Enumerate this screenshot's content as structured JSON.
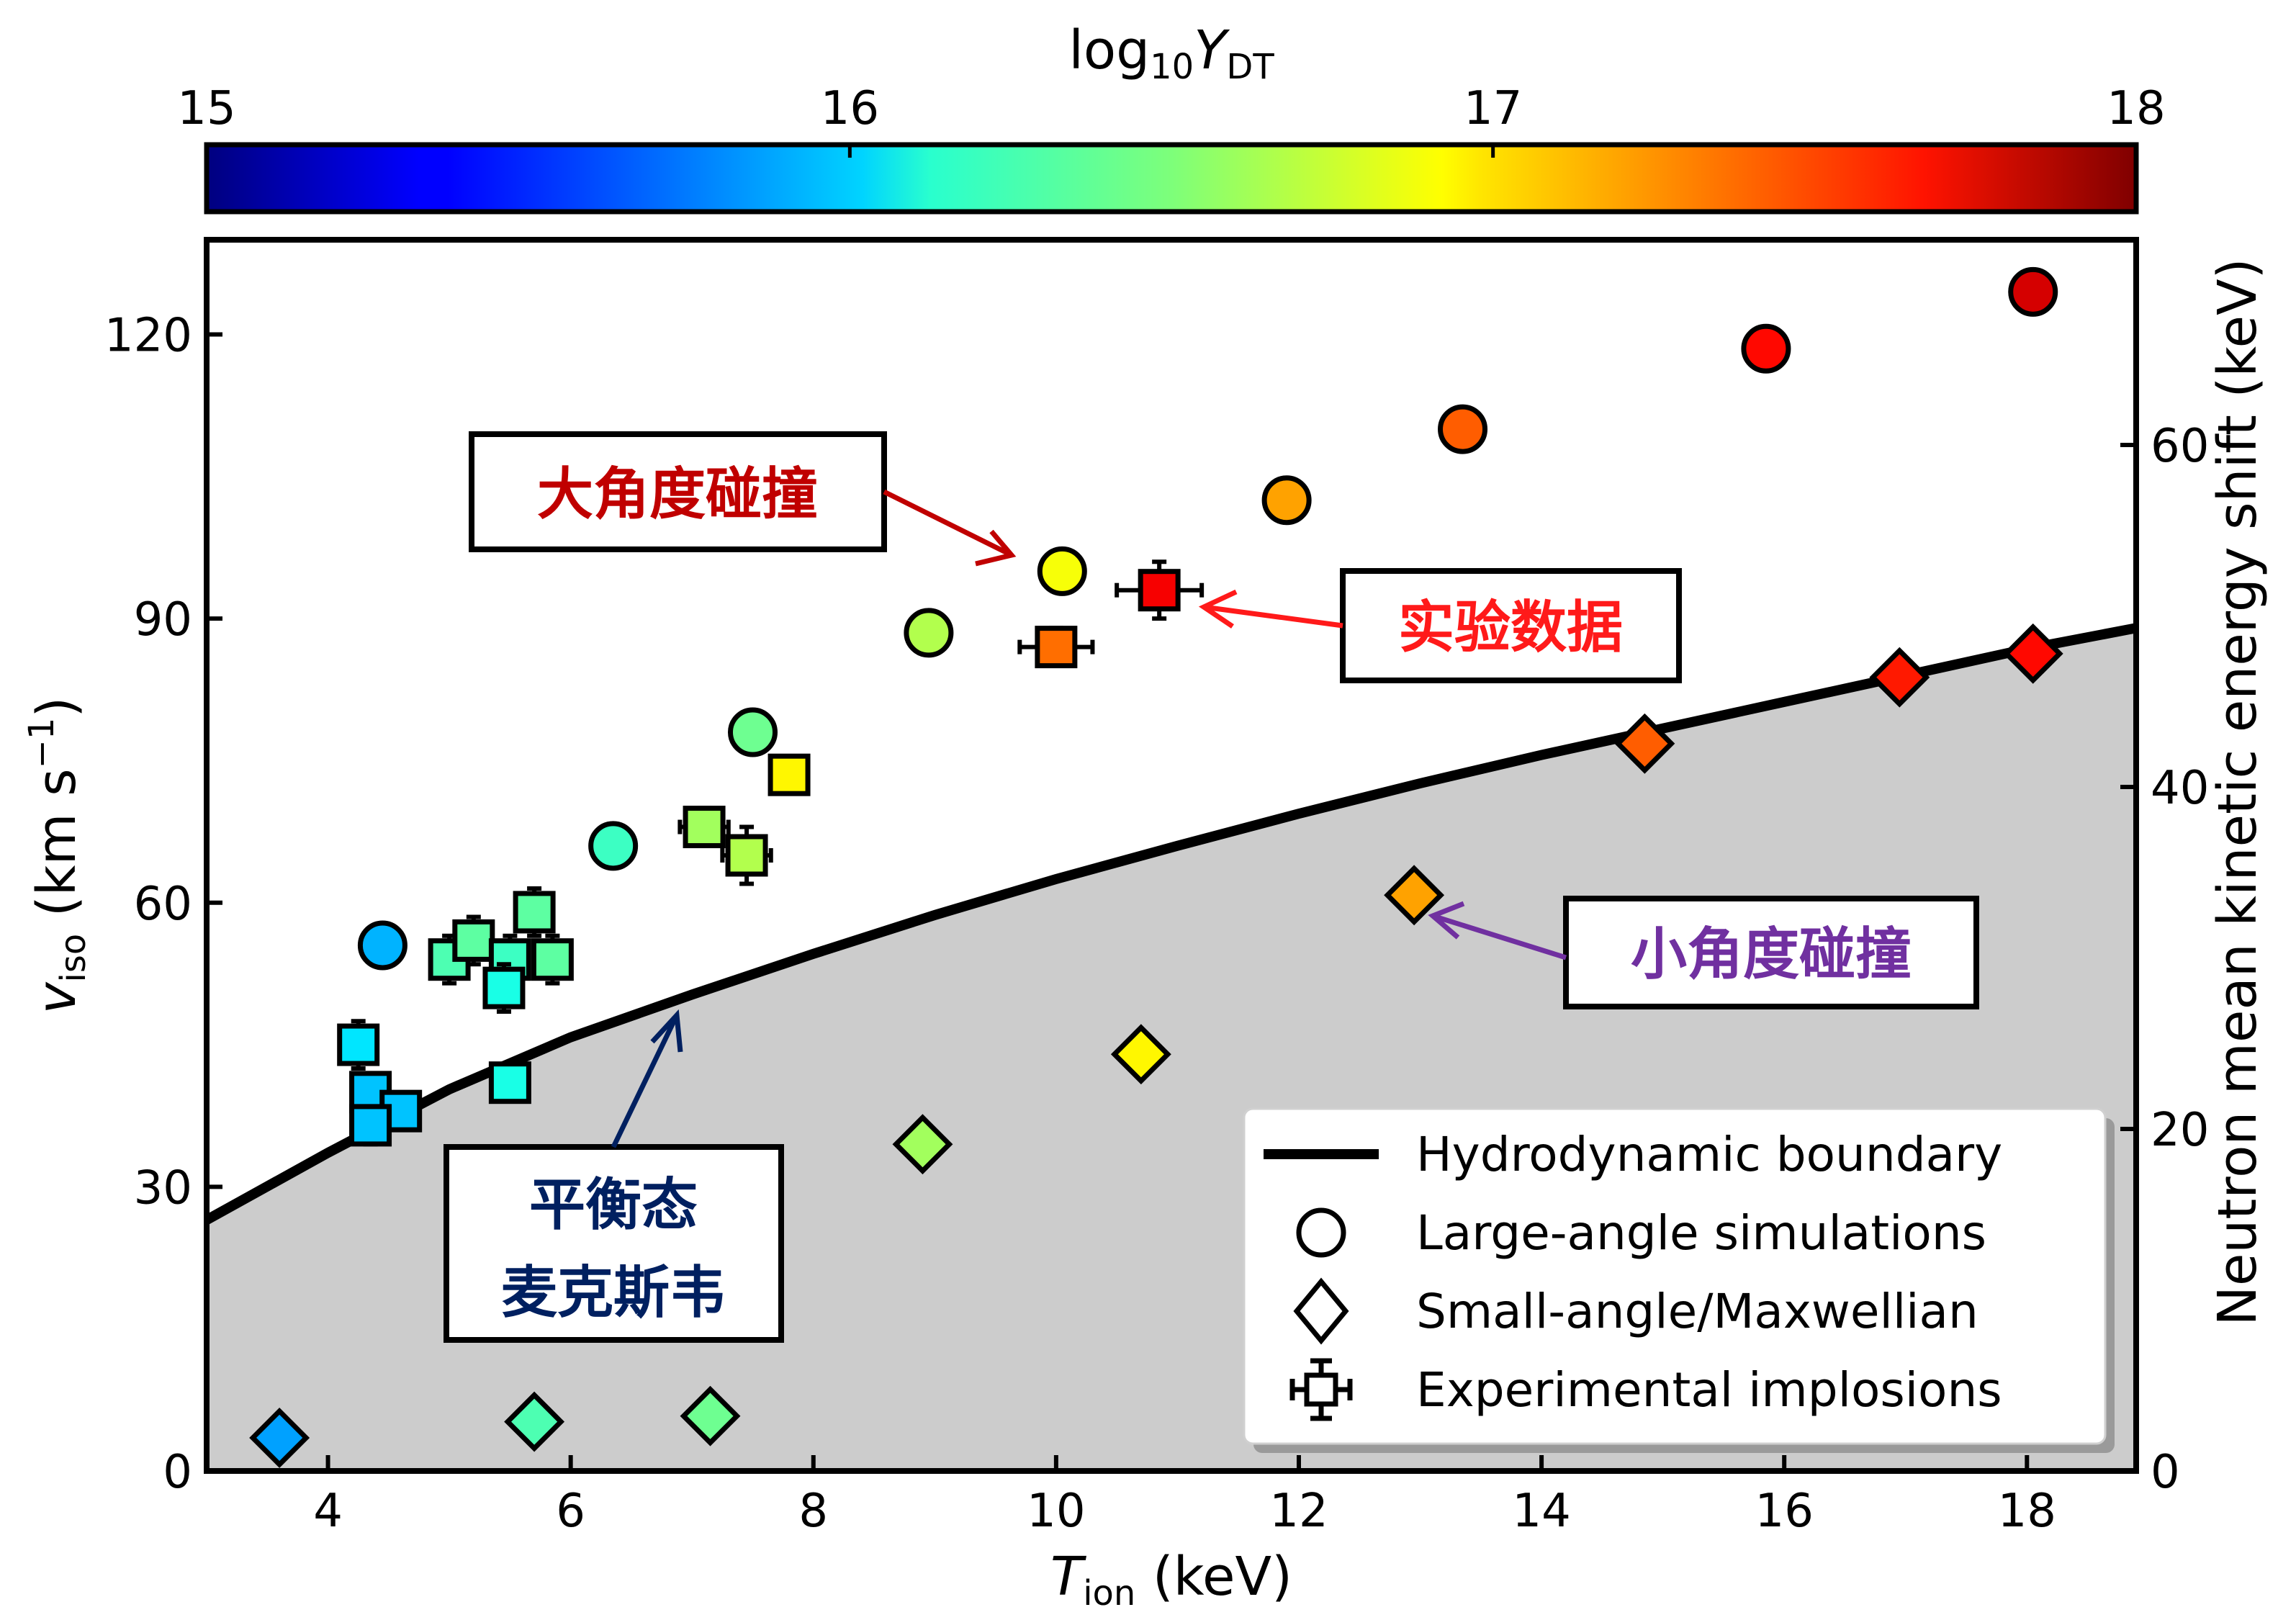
{
  "chart_data": {
    "type": "scatter",
    "xlabel": "T_ion (keV)",
    "ylabel": "v_iso (km s⁻¹)",
    "y2label": "Neutron mean kinetic energy shift (keV)",
    "xlim": [
      3,
      18.9
    ],
    "ylim": [
      0,
      130
    ],
    "y2lim": [
      0,
      72
    ],
    "xticks": [
      4,
      6,
      8,
      10,
      12,
      14,
      16,
      18
    ],
    "yticks": [
      0,
      30,
      60,
      90,
      120
    ],
    "y2ticks": [
      0,
      20,
      40,
      60
    ],
    "grid": false,
    "colorbar": {
      "label": "log10Y_DT",
      "range": [
        15,
        18
      ],
      "ticks": [
        15,
        16,
        17,
        18
      ],
      "colormap": "jet"
    },
    "hydrodynamic_boundary": {
      "name": "Hydrodynamic boundary",
      "x": [
        3,
        4,
        5,
        6,
        7,
        8,
        9,
        10,
        11,
        12,
        13,
        14,
        15,
        16,
        17,
        18,
        18.9
      ],
      "y": [
        26.5,
        33.6,
        40.3,
        45.8,
        50.3,
        54.6,
        58.7,
        62.5,
        66.0,
        69.4,
        72.6,
        75.6,
        78.4,
        81.2,
        84.0,
        86.8,
        89.0
      ]
    },
    "series": [
      {
        "name": "Large-angle simulations",
        "marker": "circle",
        "points": [
          {
            "x": 4.45,
            "y": 55.5,
            "logY": 15.9
          },
          {
            "x": 6.35,
            "y": 66.0,
            "logY": 16.3
          },
          {
            "x": 7.5,
            "y": 78.0,
            "logY": 16.45
          },
          {
            "x": 8.95,
            "y": 88.5,
            "logY": 16.65
          },
          {
            "x": 10.05,
            "y": 95.0,
            "logY": 16.85
          },
          {
            "x": 11.9,
            "y": 102.5,
            "logY": 17.15
          },
          {
            "x": 13.35,
            "y": 110.0,
            "logY": 17.35
          },
          {
            "x": 15.85,
            "y": 118.5,
            "logY": 17.6
          },
          {
            "x": 18.05,
            "y": 124.5,
            "logY": 17.75
          }
        ]
      },
      {
        "name": "Small-angle/Maxwellian",
        "marker": "diamond",
        "points": [
          {
            "x": 3.6,
            "y": 3.5,
            "logY": 15.85
          },
          {
            "x": 5.7,
            "y": 5.2,
            "logY": 16.35
          },
          {
            "x": 7.15,
            "y": 5.8,
            "logY": 16.45
          },
          {
            "x": 8.9,
            "y": 34.5,
            "logY": 16.6
          },
          {
            "x": 10.7,
            "y": 44.0,
            "logY": 16.9
          },
          {
            "x": 12.95,
            "y": 60.8,
            "logY": 17.15
          },
          {
            "x": 14.85,
            "y": 76.8,
            "logY": 17.35
          },
          {
            "x": 16.95,
            "y": 83.8,
            "logY": 17.55
          },
          {
            "x": 18.05,
            "y": 86.3,
            "logY": 17.6
          }
        ]
      },
      {
        "name": "Experimental implosions",
        "marker": "square",
        "points": [
          {
            "x": 4.25,
            "y": 45.0,
            "xerr": 0.1,
            "yerr": 2.5,
            "logY": 16.05
          },
          {
            "x": 4.35,
            "y": 40.0,
            "xerr": 0.1,
            "yerr": 2.0,
            "logY": 15.95
          },
          {
            "x": 4.6,
            "y": 38.0,
            "xerr": 0.1,
            "yerr": 1.5,
            "logY": 15.95
          },
          {
            "x": 4.35,
            "y": 36.5,
            "xerr": 0.1,
            "yerr": 2.0,
            "logY": 15.95
          },
          {
            "x": 5.0,
            "y": 54.0,
            "xerr": 0.15,
            "yerr": 2.5,
            "logY": 16.35
          },
          {
            "x": 5.2,
            "y": 56.0,
            "xerr": 0.15,
            "yerr": 2.5,
            "logY": 16.4
          },
          {
            "x": 5.5,
            "y": 54.0,
            "xerr": 0.15,
            "yerr": 2.5,
            "logY": 16.3
          },
          {
            "x": 5.45,
            "y": 51.0,
            "xerr": 0.1,
            "yerr": 2.5,
            "logY": 16.2
          },
          {
            "x": 5.7,
            "y": 59.0,
            "xerr": 0.15,
            "yerr": 2.5,
            "logY": 16.4
          },
          {
            "x": 5.85,
            "y": 54.0,
            "xerr": 0.15,
            "yerr": 2.5,
            "logY": 16.4
          },
          {
            "x": 5.5,
            "y": 41.0,
            "xerr": 0.1,
            "yerr": 1.5,
            "logY": 16.2
          },
          {
            "x": 7.1,
            "y": 68.0,
            "xerr": 0.2,
            "yerr": 2.0,
            "logY": 16.6
          },
          {
            "x": 7.45,
            "y": 65.0,
            "xerr": 0.2,
            "yerr": 3.0,
            "logY": 16.65
          },
          {
            "x": 7.8,
            "y": 73.5,
            "xerr": 0.1,
            "yerr": 1.5,
            "logY": 16.9
          },
          {
            "x": 10.0,
            "y": 87.0,
            "xerr": 0.3,
            "yerr": 2.0,
            "logY": 17.3
          },
          {
            "x": 10.85,
            "y": 93.0,
            "xerr": 0.35,
            "yerr": 3.0,
            "logY": 17.65
          }
        ]
      }
    ],
    "legend": {
      "placement": "bottom-right",
      "items": [
        "Hydrodynamic boundary",
        "Large-angle simulations",
        "Small-angle/Maxwellian",
        "Experimental implosions"
      ]
    },
    "annotations": [
      {
        "text": "大角度碰撞",
        "color": "#c00000",
        "target": {
          "x": 9.75,
          "y": 96.5
        }
      },
      {
        "text": "实验数据",
        "color": "#ff1a1a",
        "target": {
          "x": 11.2,
          "y": 91.5
        }
      },
      {
        "text": "小角度碰撞",
        "color": "#7030a0",
        "target": {
          "x": 13.2,
          "y": 59.5
        }
      },
      {
        "text": "平衡态",
        "text2": "麦克斯韦",
        "color": "#002060",
        "target": {
          "x": 6.95,
          "y": 48.0
        }
      }
    ]
  }
}
